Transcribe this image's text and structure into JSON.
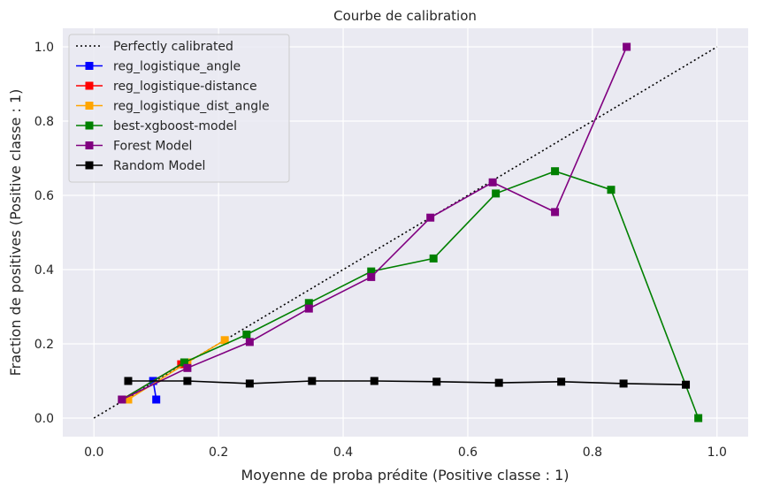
{
  "chart_data": {
    "type": "line",
    "title": "Courbe de calibration",
    "xlabel": "Moyenne de proba prédite (Positive classe : 1)",
    "ylabel": "Fraction de positives (Positive classe : 1)",
    "xlim": [
      -0.05,
      1.05
    ],
    "ylim": [
      -0.05,
      1.05
    ],
    "x_ticks": [
      "0.0",
      "0.2",
      "0.4",
      "0.6",
      "0.8",
      "1.0"
    ],
    "y_ticks": [
      "0.0",
      "0.2",
      "0.4",
      "0.6",
      "0.8",
      "1.0"
    ],
    "grid": true,
    "legend_position": "top-left",
    "series": [
      {
        "name": "Perfectly calibrated",
        "color": "#000000",
        "style": "dotted",
        "marker": "none",
        "x": [
          0,
          1
        ],
        "y": [
          0,
          1
        ]
      },
      {
        "name": "reg_logistique_angle",
        "color": "#0000ff",
        "style": "solid",
        "marker": "square",
        "x": [
          0.045,
          0.095,
          0.1
        ],
        "y": [
          0.05,
          0.1,
          0.05
        ]
      },
      {
        "name": "reg_logistique-distance",
        "color": "#ff0000",
        "style": "solid",
        "marker": "square",
        "x": [
          0.045,
          0.14
        ],
        "y": [
          0.05,
          0.145
        ]
      },
      {
        "name": "reg_logistique_dist_angle",
        "color": "#ffa500",
        "style": "solid",
        "marker": "square",
        "x": [
          0.055,
          0.15,
          0.21
        ],
        "y": [
          0.05,
          0.15,
          0.21
        ]
      },
      {
        "name": "best-xgboost-model",
        "color": "#008000",
        "style": "solid",
        "marker": "square",
        "x": [
          0.045,
          0.145,
          0.245,
          0.345,
          0.445,
          0.545,
          0.645,
          0.74,
          0.83,
          0.97
        ],
        "y": [
          0.05,
          0.15,
          0.225,
          0.31,
          0.395,
          0.43,
          0.605,
          0.665,
          0.615,
          0.0
        ]
      },
      {
        "name": "Forest Model",
        "color": "#800080",
        "style": "solid",
        "marker": "square",
        "x": [
          0.045,
          0.15,
          0.25,
          0.345,
          0.445,
          0.54,
          0.64,
          0.74,
          0.855
        ],
        "y": [
          0.05,
          0.135,
          0.205,
          0.295,
          0.38,
          0.54,
          0.635,
          0.555,
          1.0
        ]
      },
      {
        "name": "Random Model",
        "color": "#000000",
        "style": "solid",
        "marker": "square",
        "x": [
          0.055,
          0.15,
          0.25,
          0.35,
          0.45,
          0.55,
          0.65,
          0.75,
          0.85,
          0.95
        ],
        "y": [
          0.1,
          0.1,
          0.093,
          0.1,
          0.1,
          0.098,
          0.095,
          0.098,
          0.093,
          0.09
        ]
      }
    ]
  }
}
